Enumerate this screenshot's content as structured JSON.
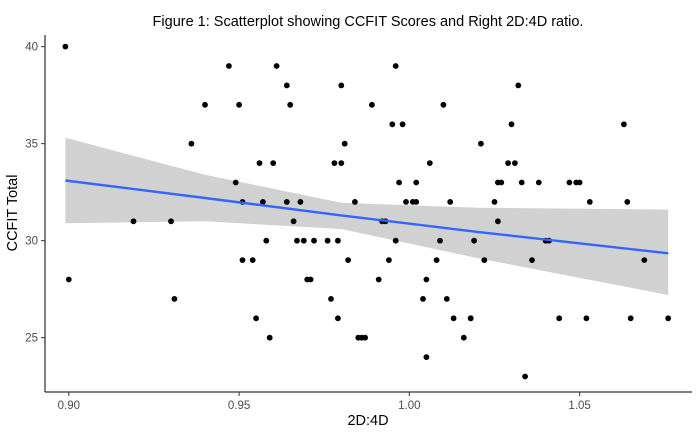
{
  "chart_data": {
    "type": "scatter",
    "title": "Figure 1: Scatterplot showing CCFIT Scores and Right 2D:4D ratio.",
    "xlabel": "2D:4D",
    "ylabel": "CCFIT Total",
    "xlim": [
      0.893,
      1.083
    ],
    "ylim": [
      22.2,
      40.6
    ],
    "xticks": [
      0.9,
      0.95,
      1.0,
      1.05
    ],
    "xtick_labels": [
      "0.90",
      "0.95",
      "1.00",
      "1.05"
    ],
    "yticks": [
      25,
      30,
      35,
      40
    ],
    "ytick_labels": [
      "25",
      "30",
      "35",
      "40"
    ],
    "grid": false,
    "legend": "none",
    "point_color": "#000000",
    "fit_line": {
      "method": "linear regression",
      "color": "#3366FF",
      "band_color": "#CCCCCC",
      "x": [
        0.899,
        0.94,
        0.98,
        1.02,
        1.076
      ],
      "y": [
        33.1,
        32.2,
        31.3,
        30.45,
        29.35
      ],
      "ci_low": [
        30.9,
        31.0,
        30.6,
        29.1,
        27.2
      ],
      "ci_high": [
        35.3,
        33.4,
        31.95,
        31.7,
        31.6
      ]
    },
    "points": [
      {
        "x": 0.899,
        "y": 40
      },
      {
        "x": 0.9,
        "y": 28
      },
      {
        "x": 0.919,
        "y": 31
      },
      {
        "x": 0.93,
        "y": 31
      },
      {
        "x": 0.931,
        "y": 27
      },
      {
        "x": 0.936,
        "y": 35
      },
      {
        "x": 0.94,
        "y": 37
      },
      {
        "x": 0.947,
        "y": 39
      },
      {
        "x": 0.949,
        "y": 33
      },
      {
        "x": 0.95,
        "y": 37
      },
      {
        "x": 0.951,
        "y": 32
      },
      {
        "x": 0.951,
        "y": 29
      },
      {
        "x": 0.954,
        "y": 29
      },
      {
        "x": 0.955,
        "y": 26
      },
      {
        "x": 0.956,
        "y": 34
      },
      {
        "x": 0.957,
        "y": 32
      },
      {
        "x": 0.958,
        "y": 30
      },
      {
        "x": 0.959,
        "y": 25
      },
      {
        "x": 0.96,
        "y": 34
      },
      {
        "x": 0.961,
        "y": 39
      },
      {
        "x": 0.964,
        "y": 32
      },
      {
        "x": 0.964,
        "y": 38
      },
      {
        "x": 0.965,
        "y": 37
      },
      {
        "x": 0.966,
        "y": 31
      },
      {
        "x": 0.967,
        "y": 30
      },
      {
        "x": 0.968,
        "y": 32
      },
      {
        "x": 0.969,
        "y": 30
      },
      {
        "x": 0.97,
        "y": 28
      },
      {
        "x": 0.971,
        "y": 28
      },
      {
        "x": 0.972,
        "y": 30
      },
      {
        "x": 0.976,
        "y": 30
      },
      {
        "x": 0.977,
        "y": 27
      },
      {
        "x": 0.978,
        "y": 34
      },
      {
        "x": 0.979,
        "y": 26
      },
      {
        "x": 0.979,
        "y": 30
      },
      {
        "x": 0.98,
        "y": 34
      },
      {
        "x": 0.98,
        "y": 38
      },
      {
        "x": 0.981,
        "y": 35
      },
      {
        "x": 0.982,
        "y": 29
      },
      {
        "x": 0.984,
        "y": 32
      },
      {
        "x": 0.985,
        "y": 25
      },
      {
        "x": 0.986,
        "y": 25
      },
      {
        "x": 0.987,
        "y": 25
      },
      {
        "x": 0.989,
        "y": 37
      },
      {
        "x": 0.991,
        "y": 28
      },
      {
        "x": 0.992,
        "y": 31
      },
      {
        "x": 0.993,
        "y": 31
      },
      {
        "x": 0.994,
        "y": 29
      },
      {
        "x": 0.995,
        "y": 36
      },
      {
        "x": 0.996,
        "y": 39
      },
      {
        "x": 0.996,
        "y": 30
      },
      {
        "x": 0.997,
        "y": 33
      },
      {
        "x": 0.998,
        "y": 36
      },
      {
        "x": 0.999,
        "y": 32
      },
      {
        "x": 1.001,
        "y": 32
      },
      {
        "x": 1.002,
        "y": 33
      },
      {
        "x": 1.002,
        "y": 32
      },
      {
        "x": 1.004,
        "y": 27
      },
      {
        "x": 1.005,
        "y": 24
      },
      {
        "x": 1.005,
        "y": 28
      },
      {
        "x": 1.006,
        "y": 34
      },
      {
        "x": 1.008,
        "y": 29
      },
      {
        "x": 1.009,
        "y": 30
      },
      {
        "x": 1.01,
        "y": 37
      },
      {
        "x": 1.011,
        "y": 27
      },
      {
        "x": 1.012,
        "y": 32
      },
      {
        "x": 1.013,
        "y": 26
      },
      {
        "x": 1.016,
        "y": 25
      },
      {
        "x": 1.018,
        "y": 26
      },
      {
        "x": 1.018,
        "y": 26
      },
      {
        "x": 1.019,
        "y": 30
      },
      {
        "x": 1.021,
        "y": 35
      },
      {
        "x": 1.022,
        "y": 29
      },
      {
        "x": 1.025,
        "y": 32
      },
      {
        "x": 1.026,
        "y": 33
      },
      {
        "x": 1.026,
        "y": 31
      },
      {
        "x": 1.027,
        "y": 33
      },
      {
        "x": 1.029,
        "y": 34
      },
      {
        "x": 1.03,
        "y": 36
      },
      {
        "x": 1.031,
        "y": 34
      },
      {
        "x": 1.032,
        "y": 38
      },
      {
        "x": 1.033,
        "y": 33
      },
      {
        "x": 1.034,
        "y": 23
      },
      {
        "x": 1.036,
        "y": 29
      },
      {
        "x": 1.038,
        "y": 33
      },
      {
        "x": 1.04,
        "y": 30
      },
      {
        "x": 1.041,
        "y": 30
      },
      {
        "x": 1.044,
        "y": 26
      },
      {
        "x": 1.047,
        "y": 33
      },
      {
        "x": 1.049,
        "y": 33
      },
      {
        "x": 1.05,
        "y": 33
      },
      {
        "x": 1.052,
        "y": 26
      },
      {
        "x": 1.053,
        "y": 32
      },
      {
        "x": 1.063,
        "y": 36
      },
      {
        "x": 1.064,
        "y": 32
      },
      {
        "x": 1.065,
        "y": 26
      },
      {
        "x": 1.069,
        "y": 29
      },
      {
        "x": 1.076,
        "y": 26
      }
    ]
  }
}
